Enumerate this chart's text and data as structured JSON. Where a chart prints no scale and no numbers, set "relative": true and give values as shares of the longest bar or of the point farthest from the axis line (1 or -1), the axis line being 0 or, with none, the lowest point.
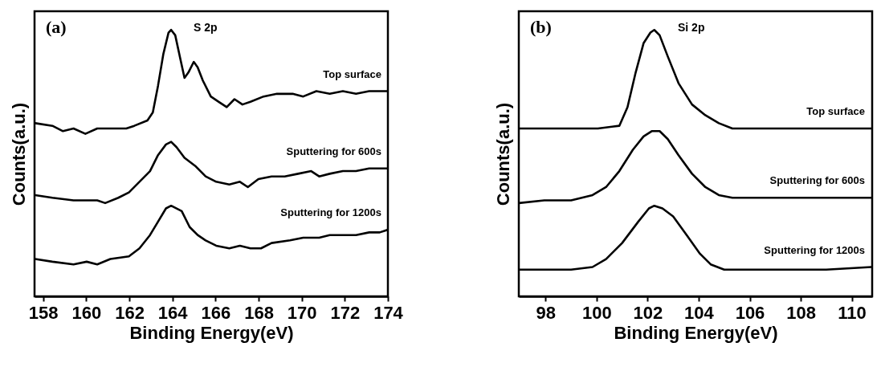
{
  "chart_data": [
    {
      "type": "line",
      "title": "S 2p",
      "annotations": [
        "(a)"
      ],
      "xlabel": "Binding Energy(eV)",
      "ylabel": "Counts(a.u.)",
      "relative": true,
      "xlim": [
        157.6,
        174
      ],
      "xticks": [
        158,
        160,
        162,
        164,
        166,
        168,
        170,
        172,
        174
      ],
      "series": [
        {
          "name": "Top surface",
          "color": "#000000",
          "x": [
            157.63,
            158.43,
            158.92,
            159.41,
            159.96,
            160.51,
            161.25,
            161.86,
            162.23,
            162.84,
            163.09,
            163.33,
            163.58,
            163.82,
            163.94,
            164.13,
            164.37,
            164.56,
            164.74,
            164.99,
            165.17,
            165.41,
            165.78,
            166.15,
            166.52,
            166.88,
            167.25,
            167.62,
            168.23,
            168.85,
            169.58,
            170.07,
            170.68,
            171.3,
            171.91,
            172.52,
            173.13,
            174
          ],
          "values": [
            0.65,
            0.64,
            0.62,
            0.63,
            0.61,
            0.63,
            0.63,
            0.63,
            0.64,
            0.66,
            0.69,
            0.79,
            0.91,
            0.99,
            1.0,
            0.98,
            0.89,
            0.82,
            0.84,
            0.88,
            0.86,
            0.81,
            0.75,
            0.73,
            0.71,
            0.74,
            0.72,
            0.73,
            0.75,
            0.76,
            0.76,
            0.75,
            0.77,
            0.76,
            0.77,
            0.76,
            0.77,
            0.77
          ]
        },
        {
          "name": "Sputtering for 600s",
          "color": "#000000",
          "x": [
            157.63,
            158.43,
            159.41,
            160.51,
            160.88,
            161.49,
            161.98,
            162.47,
            162.96,
            163.33,
            163.7,
            163.94,
            164.19,
            164.56,
            165.05,
            165.54,
            166.03,
            166.64,
            167.13,
            167.5,
            167.99,
            168.6,
            169.21,
            169.83,
            170.44,
            170.81,
            171.3,
            171.91,
            172.52,
            173.13,
            174
          ],
          "values": [
            0.38,
            0.37,
            0.36,
            0.36,
            0.35,
            0.37,
            0.39,
            0.43,
            0.47,
            0.53,
            0.57,
            0.58,
            0.56,
            0.52,
            0.49,
            0.45,
            0.43,
            0.42,
            0.43,
            0.41,
            0.44,
            0.45,
            0.45,
            0.46,
            0.47,
            0.45,
            0.46,
            0.47,
            0.47,
            0.48,
            0.48
          ]
        },
        {
          "name": "Sputtering for 1200s",
          "color": "#000000",
          "x": [
            157.63,
            158.43,
            159.41,
            160.02,
            160.51,
            161.12,
            161.98,
            162.47,
            162.96,
            163.33,
            163.7,
            163.94,
            164.43,
            164.8,
            165.17,
            165.54,
            166.03,
            166.64,
            167.13,
            167.62,
            168.11,
            168.6,
            169.46,
            170.07,
            170.81,
            171.3,
            171.91,
            172.52,
            173.13,
            173.62,
            174
          ],
          "values": [
            0.14,
            0.13,
            0.12,
            0.13,
            0.12,
            0.14,
            0.15,
            0.18,
            0.23,
            0.28,
            0.33,
            0.34,
            0.32,
            0.26,
            0.23,
            0.21,
            0.19,
            0.18,
            0.19,
            0.18,
            0.18,
            0.2,
            0.21,
            0.22,
            0.22,
            0.23,
            0.23,
            0.23,
            0.24,
            0.24,
            0.25
          ]
        }
      ]
    },
    {
      "type": "line",
      "title": "Si 2p",
      "annotations": [
        "(b)"
      ],
      "xlabel": "Binding Energy(eV)",
      "ylabel": "Counts(a.u.)",
      "relative": true,
      "xlim": [
        96.95,
        110.8
      ],
      "xticks": [
        98,
        100,
        102,
        104,
        106,
        108,
        110
      ],
      "series": [
        {
          "name": "Top surface",
          "color": "#000000",
          "x": [
            96.95,
            97.95,
            99.0,
            100.05,
            100.89,
            101.21,
            101.53,
            101.84,
            102.11,
            102.26,
            102.47,
            102.79,
            103.21,
            103.74,
            104.26,
            104.79,
            105.32,
            106.37,
            107.95,
            109.53,
            110.77
          ],
          "values": [
            0.63,
            0.63,
            0.63,
            0.63,
            0.64,
            0.71,
            0.84,
            0.95,
            0.99,
            1.0,
            0.98,
            0.9,
            0.8,
            0.72,
            0.68,
            0.65,
            0.63,
            0.63,
            0.63,
            0.63,
            0.63
          ]
        },
        {
          "name": "Sputtering for 600s",
          "color": "#000000",
          "x": [
            96.95,
            97.95,
            99.0,
            99.84,
            100.37,
            100.89,
            101.42,
            101.84,
            102.16,
            102.47,
            102.79,
            103.21,
            103.74,
            104.26,
            104.79,
            105.32,
            106.37,
            107.95,
            109.53,
            110.77
          ],
          "values": [
            0.35,
            0.36,
            0.36,
            0.38,
            0.41,
            0.47,
            0.55,
            0.6,
            0.62,
            0.62,
            0.59,
            0.53,
            0.46,
            0.41,
            0.38,
            0.37,
            0.37,
            0.37,
            0.37,
            0.37
          ]
        },
        {
          "name": "Sputtering for 1200s",
          "color": "#000000",
          "x": [
            96.95,
            97.95,
            99.0,
            99.84,
            100.37,
            101.0,
            101.63,
            102.05,
            102.26,
            102.58,
            103.0,
            103.53,
            104.05,
            104.47,
            105.0,
            105.84,
            107.42,
            109.0,
            110.77
          ],
          "values": [
            0.1,
            0.1,
            0.1,
            0.11,
            0.14,
            0.2,
            0.28,
            0.33,
            0.34,
            0.33,
            0.3,
            0.23,
            0.16,
            0.12,
            0.1,
            0.1,
            0.1,
            0.1,
            0.11
          ]
        }
      ]
    }
  ]
}
